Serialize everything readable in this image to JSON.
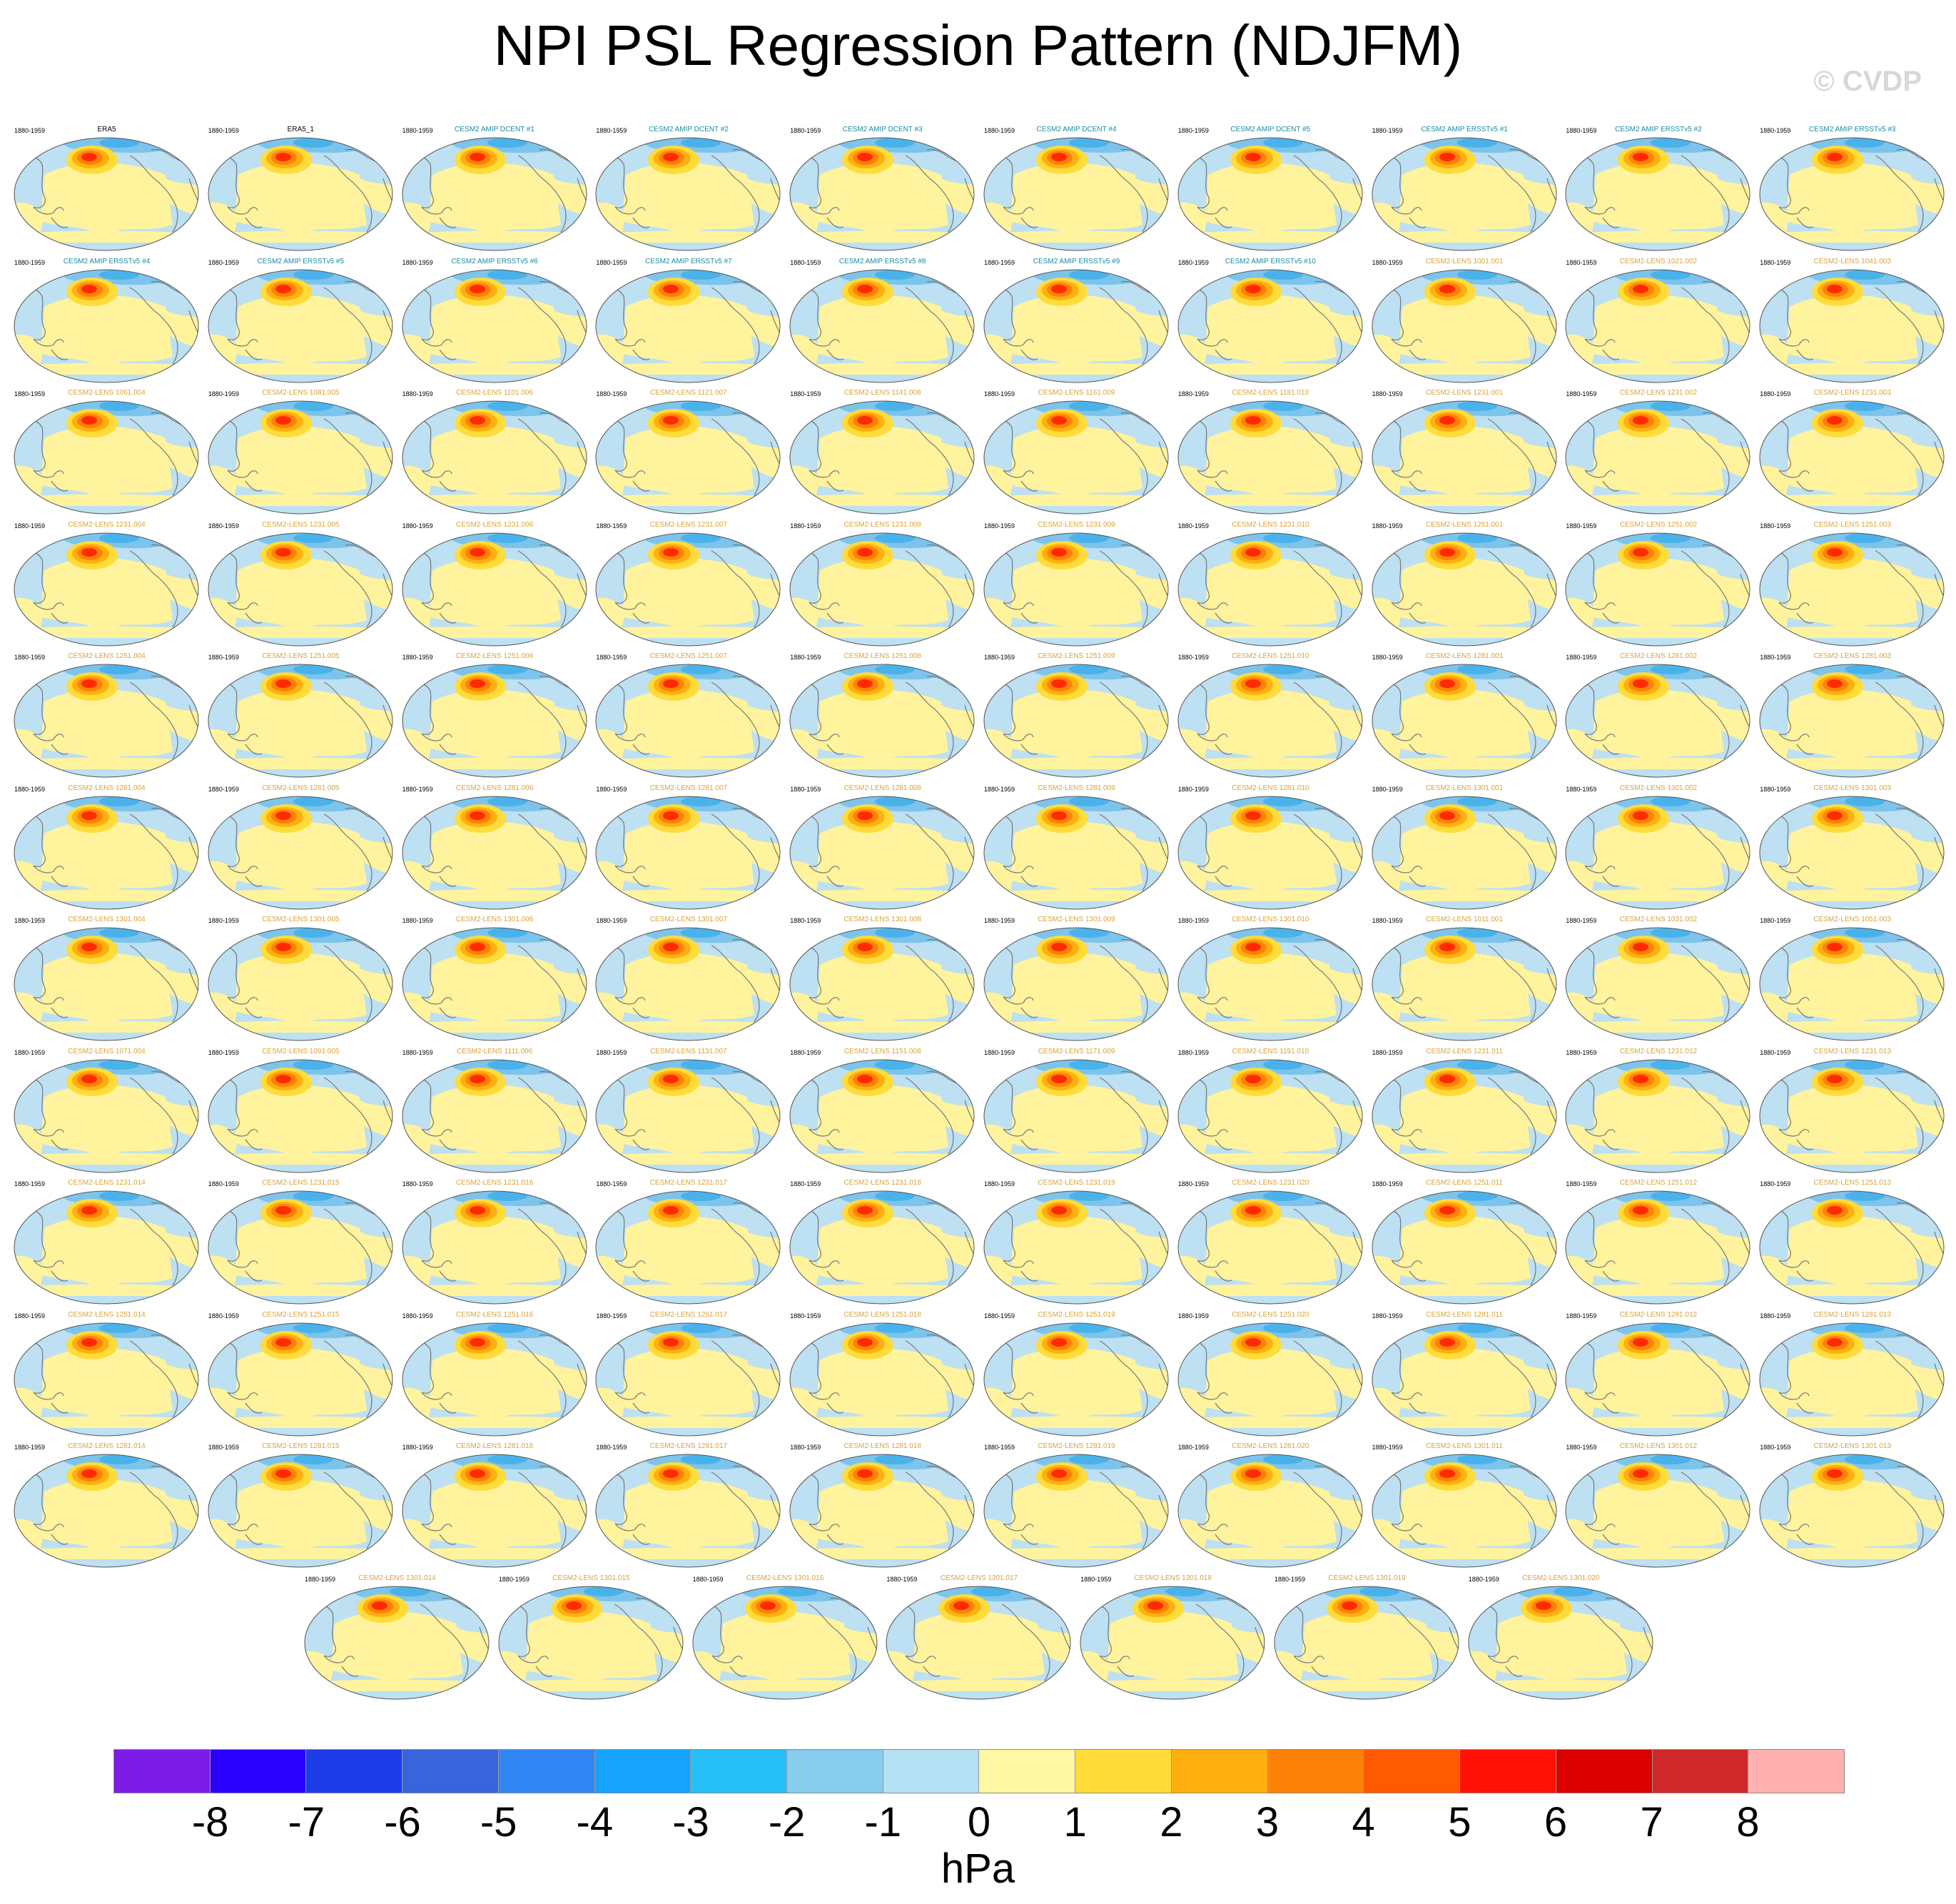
{
  "title": "NPI PSL Regression Pattern (NDJFM)",
  "watermark": "© CVDP",
  "colorbar": {
    "unit": "hPa",
    "labels": [
      "-8",
      "-7",
      "-6",
      "-5",
      "-4",
      "-3",
      "-2",
      "-1",
      "0",
      "1",
      "2",
      "3",
      "4",
      "5",
      "6",
      "7",
      "8"
    ],
    "colors": [
      "#7c1ce6",
      "#2a00ff",
      "#1e3be8",
      "#3864dc",
      "#2f86f3",
      "#16a3ff",
      "#27bff7",
      "#88cdee",
      "#b6e0f3",
      "#fff7a3",
      "#ffdc3a",
      "#ffb010",
      "#ff8208",
      "#ff5a00",
      "#ff1205",
      "#dc0000",
      "#d0282a",
      "#ffb1b1"
    ]
  },
  "panel_colors": {
    "obs_title": "#000000",
    "amip_title": "#1a8ca0",
    "lens_title": "#d9a33a",
    "ocean_negative": "#bde0f2",
    "ocean_positive": "#fff39d",
    "polar_strong": "#4ab2ea",
    "max_center": "#ff2a00"
  },
  "panels": [
    {
      "title": "ERA5",
      "period": "1880-1959",
      "group": "obs"
    },
    {
      "title": "ERA5_1",
      "period": "1880-1959",
      "group": "obs"
    },
    {
      "title": "CESM2 AMIP DCENT #1",
      "period": "1880-1959",
      "group": "amip"
    },
    {
      "title": "CESM2 AMIP DCENT #2",
      "period": "1880-1959",
      "group": "amip"
    },
    {
      "title": "CESM2 AMIP DCENT #3",
      "period": "1880-1959",
      "group": "amip"
    },
    {
      "title": "CESM2 AMIP DCENT #4",
      "period": "1880-1959",
      "group": "amip"
    },
    {
      "title": "CESM2 AMIP DCENT #5",
      "period": "1880-1959",
      "group": "amip"
    },
    {
      "title": "CESM2 AMIP ERSSTv5 #1",
      "period": "1880-1959",
      "group": "amip"
    },
    {
      "title": "CESM2 AMIP ERSSTv5 #2",
      "period": "1880-1959",
      "group": "amip"
    },
    {
      "title": "CESM2 AMIP ERSSTv5 #3",
      "period": "1880-1959",
      "group": "amip"
    },
    {
      "title": "CESM2 AMIP ERSSTv5 #4",
      "period": "1880-1959",
      "group": "amip"
    },
    {
      "title": "CESM2 AMIP ERSSTv5 #5",
      "period": "1880-1959",
      "group": "amip"
    },
    {
      "title": "CESM2 AMIP ERSSTv5 #6",
      "period": "1880-1959",
      "group": "amip"
    },
    {
      "title": "CESM2 AMIP ERSSTv5 #7",
      "period": "1880-1959",
      "group": "amip"
    },
    {
      "title": "CESM2 AMIP ERSSTv5 #8",
      "period": "1880-1959",
      "group": "amip"
    },
    {
      "title": "CESM2 AMIP ERSSTv5 #9",
      "period": "1880-1959",
      "group": "amip"
    },
    {
      "title": "CESM2 AMIP ERSSTv5 #10",
      "period": "1880-1959",
      "group": "amip"
    },
    {
      "title": "CESM2-LENS 1001.001",
      "period": "1880-1959",
      "group": "lens"
    },
    {
      "title": "CESM2-LENS 1021.002",
      "period": "1880-1959",
      "group": "lens"
    },
    {
      "title": "CESM2-LENS 1041.003",
      "period": "1880-1959",
      "group": "lens"
    },
    {
      "title": "CESM2-LENS 1061.004",
      "period": "1880-1959",
      "group": "lens"
    },
    {
      "title": "CESM2-LENS 1081.005",
      "period": "1880-1959",
      "group": "lens"
    },
    {
      "title": "CESM2-LENS 1101.006",
      "period": "1880-1959",
      "group": "lens"
    },
    {
      "title": "CESM2-LENS 1121.007",
      "period": "1880-1959",
      "group": "lens"
    },
    {
      "title": "CESM2-LENS 1141.008",
      "period": "1880-1959",
      "group": "lens"
    },
    {
      "title": "CESM2-LENS 1161.009",
      "period": "1880-1959",
      "group": "lens"
    },
    {
      "title": "CESM2-LENS 1181.010",
      "period": "1880-1959",
      "group": "lens"
    },
    {
      "title": "CESM2-LENS 1231.001",
      "period": "1880-1959",
      "group": "lens"
    },
    {
      "title": "CESM2-LENS 1231.002",
      "period": "1880-1959",
      "group": "lens"
    },
    {
      "title": "CESM2-LENS 1231.003",
      "period": "1880-1959",
      "group": "lens"
    },
    {
      "title": "CESM2-LENS 1231.004",
      "period": "1880-1959",
      "group": "lens"
    },
    {
      "title": "CESM2-LENS 1231.005",
      "period": "1880-1959",
      "group": "lens"
    },
    {
      "title": "CESM2-LENS 1231.006",
      "period": "1880-1959",
      "group": "lens"
    },
    {
      "title": "CESM2-LENS 1231.007",
      "period": "1880-1959",
      "group": "lens"
    },
    {
      "title": "CESM2-LENS 1231.008",
      "period": "1880-1959",
      "group": "lens"
    },
    {
      "title": "CESM2-LENS 1231.009",
      "period": "1880-1959",
      "group": "lens"
    },
    {
      "title": "CESM2-LENS 1231.010",
      "period": "1880-1959",
      "group": "lens"
    },
    {
      "title": "CESM2-LENS 1251.001",
      "period": "1880-1959",
      "group": "lens"
    },
    {
      "title": "CESM2-LENS 1251.002",
      "period": "1880-1959",
      "group": "lens"
    },
    {
      "title": "CESM2-LENS 1251.003",
      "period": "1880-1959",
      "group": "lens"
    },
    {
      "title": "CESM2-LENS 1251.004",
      "period": "1880-1959",
      "group": "lens"
    },
    {
      "title": "CESM2-LENS 1251.005",
      "period": "1880-1959",
      "group": "lens"
    },
    {
      "title": "CESM2-LENS 1251.006",
      "period": "1880-1959",
      "group": "lens"
    },
    {
      "title": "CESM2-LENS 1251.007",
      "period": "1880-1959",
      "group": "lens"
    },
    {
      "title": "CESM2-LENS 1251.008",
      "period": "1880-1959",
      "group": "lens"
    },
    {
      "title": "CESM2-LENS 1251.009",
      "period": "1880-1959",
      "group": "lens"
    },
    {
      "title": "CESM2-LENS 1251.010",
      "period": "1880-1959",
      "group": "lens"
    },
    {
      "title": "CESM2-LENS 1281.001",
      "period": "1880-1959",
      "group": "lens"
    },
    {
      "title": "CESM2-LENS 1281.002",
      "period": "1880-1959",
      "group": "lens"
    },
    {
      "title": "CESM2-LENS 1281.003",
      "period": "1880-1959",
      "group": "lens"
    },
    {
      "title": "CESM2-LENS 1281.004",
      "period": "1880-1959",
      "group": "lens"
    },
    {
      "title": "CESM2-LENS 1281.005",
      "period": "1880-1959",
      "group": "lens"
    },
    {
      "title": "CESM2-LENS 1281.006",
      "period": "1880-1959",
      "group": "lens"
    },
    {
      "title": "CESM2-LENS 1281.007",
      "period": "1880-1959",
      "group": "lens"
    },
    {
      "title": "CESM2-LENS 1281.008",
      "period": "1880-1959",
      "group": "lens"
    },
    {
      "title": "CESM2-LENS 1281.009",
      "period": "1880-1959",
      "group": "lens"
    },
    {
      "title": "CESM2-LENS 1281.010",
      "period": "1880-1959",
      "group": "lens"
    },
    {
      "title": "CESM2-LENS 1301.001",
      "period": "1880-1959",
      "group": "lens"
    },
    {
      "title": "CESM2-LENS 1301.002",
      "period": "1880-1959",
      "group": "lens"
    },
    {
      "title": "CESM2-LENS 1301.003",
      "period": "1880-1959",
      "group": "lens"
    },
    {
      "title": "CESM2-LENS 1301.004",
      "period": "1880-1959",
      "group": "lens"
    },
    {
      "title": "CESM2-LENS 1301.005",
      "period": "1880-1959",
      "group": "lens"
    },
    {
      "title": "CESM2-LENS 1301.006",
      "period": "1880-1959",
      "group": "lens"
    },
    {
      "title": "CESM2-LENS 1301.007",
      "period": "1880-1959",
      "group": "lens"
    },
    {
      "title": "CESM2-LENS 1301.008",
      "period": "1880-1959",
      "group": "lens"
    },
    {
      "title": "CESM2-LENS 1301.009",
      "period": "1880-1959",
      "group": "lens"
    },
    {
      "title": "CESM2-LENS 1301.010",
      "period": "1880-1959",
      "group": "lens"
    },
    {
      "title": "CESM2-LENS 1011.001",
      "period": "1880-1959",
      "group": "lens"
    },
    {
      "title": "CESM2-LENS 1031.002",
      "period": "1880-1959",
      "group": "lens"
    },
    {
      "title": "CESM2-LENS 1051.003",
      "period": "1880-1959",
      "group": "lens"
    },
    {
      "title": "CESM2-LENS 1071.004",
      "period": "1880-1959",
      "group": "lens"
    },
    {
      "title": "CESM2-LENS 1091.005",
      "period": "1880-1959",
      "group": "lens"
    },
    {
      "title": "CESM2-LENS 1111.006",
      "period": "1880-1959",
      "group": "lens"
    },
    {
      "title": "CESM2-LENS 1131.007",
      "period": "1880-1959",
      "group": "lens"
    },
    {
      "title": "CESM2-LENS 1151.008",
      "period": "1880-1959",
      "group": "lens"
    },
    {
      "title": "CESM2-LENS 1171.009",
      "period": "1880-1959",
      "group": "lens"
    },
    {
      "title": "CESM2-LENS 1191.010",
      "period": "1880-1959",
      "group": "lens"
    },
    {
      "title": "CESM2-LENS 1231.011",
      "period": "1880-1959",
      "group": "lens"
    },
    {
      "title": "CESM2-LENS 1231.012",
      "period": "1880-1959",
      "group": "lens"
    },
    {
      "title": "CESM2-LENS 1231.013",
      "period": "1880-1959",
      "group": "lens"
    },
    {
      "title": "CESM2-LENS 1231.014",
      "period": "1880-1959",
      "group": "lens"
    },
    {
      "title": "CESM2-LENS 1231.015",
      "period": "1880-1959",
      "group": "lens"
    },
    {
      "title": "CESM2-LENS 1231.016",
      "period": "1880-1959",
      "group": "lens"
    },
    {
      "title": "CESM2-LENS 1231.017",
      "period": "1880-1959",
      "group": "lens"
    },
    {
      "title": "CESM2-LENS 1231.018",
      "period": "1880-1959",
      "group": "lens"
    },
    {
      "title": "CESM2-LENS 1231.019",
      "period": "1880-1959",
      "group": "lens"
    },
    {
      "title": "CESM2-LENS 1231.020",
      "period": "1880-1959",
      "group": "lens"
    },
    {
      "title": "CESM2-LENS 1251.011",
      "period": "1880-1959",
      "group": "lens"
    },
    {
      "title": "CESM2-LENS 1251.012",
      "period": "1880-1959",
      "group": "lens"
    },
    {
      "title": "CESM2-LENS 1251.013",
      "period": "1880-1959",
      "group": "lens"
    },
    {
      "title": "CESM2-LENS 1251.014",
      "period": "1880-1959",
      "group": "lens"
    },
    {
      "title": "CESM2-LENS 1251.015",
      "period": "1880-1959",
      "group": "lens"
    },
    {
      "title": "CESM2-LENS 1251.016",
      "period": "1880-1959",
      "group": "lens"
    },
    {
      "title": "CESM2-LENS 1251.017",
      "period": "1880-1959",
      "group": "lens"
    },
    {
      "title": "CESM2-LENS 1251.018",
      "period": "1880-1959",
      "group": "lens"
    },
    {
      "title": "CESM2-LENS 1251.019",
      "period": "1880-1959",
      "group": "lens"
    },
    {
      "title": "CESM2-LENS 1251.020",
      "period": "1880-1959",
      "group": "lens"
    },
    {
      "title": "CESM2-LENS 1281.011",
      "period": "1880-1959",
      "group": "lens"
    },
    {
      "title": "CESM2-LENS 1281.012",
      "period": "1880-1959",
      "group": "lens"
    },
    {
      "title": "CESM2-LENS 1281.013",
      "period": "1880-1959",
      "group": "lens"
    },
    {
      "title": "CESM2-LENS 1281.014",
      "period": "1880-1959",
      "group": "lens"
    },
    {
      "title": "CESM2-LENS 1281.015",
      "period": "1880-1959",
      "group": "lens"
    },
    {
      "title": "CESM2-LENS 1281.016",
      "period": "1880-1959",
      "group": "lens"
    },
    {
      "title": "CESM2-LENS 1281.017",
      "period": "1880-1959",
      "group": "lens"
    },
    {
      "title": "CESM2-LENS 1281.018",
      "period": "1880-1959",
      "group": "lens"
    },
    {
      "title": "CESM2-LENS 1281.019",
      "period": "1880-1959",
      "group": "lens"
    },
    {
      "title": "CESM2-LENS 1281.020",
      "period": "1880-1959",
      "group": "lens"
    },
    {
      "title": "CESM2-LENS 1301.011",
      "period": "1880-1959",
      "group": "lens"
    },
    {
      "title": "CESM2-LENS 1301.012",
      "period": "1880-1959",
      "group": "lens"
    },
    {
      "title": "CESM2-LENS 1301.013",
      "period": "1880-1959",
      "group": "lens"
    },
    {
      "title": "CESM2-LENS 1301.014",
      "period": "1880-1959",
      "group": "lens"
    },
    {
      "title": "CESM2-LENS 1301.015",
      "period": "1880-1959",
      "group": "lens"
    },
    {
      "title": "CESM2-LENS 1301.016",
      "period": "1880-1959",
      "group": "lens"
    },
    {
      "title": "CESM2-LENS 1301.017",
      "period": "1880-1959",
      "group": "lens"
    },
    {
      "title": "CESM2-LENS 1301.018",
      "period": "1880-1959",
      "group": "lens"
    },
    {
      "title": "CESM2-LENS 1301.019",
      "period": "1880-1959",
      "group": "lens"
    },
    {
      "title": "CESM2-LENS 1301.020",
      "period": "1880-1959",
      "group": "lens"
    }
  ]
}
